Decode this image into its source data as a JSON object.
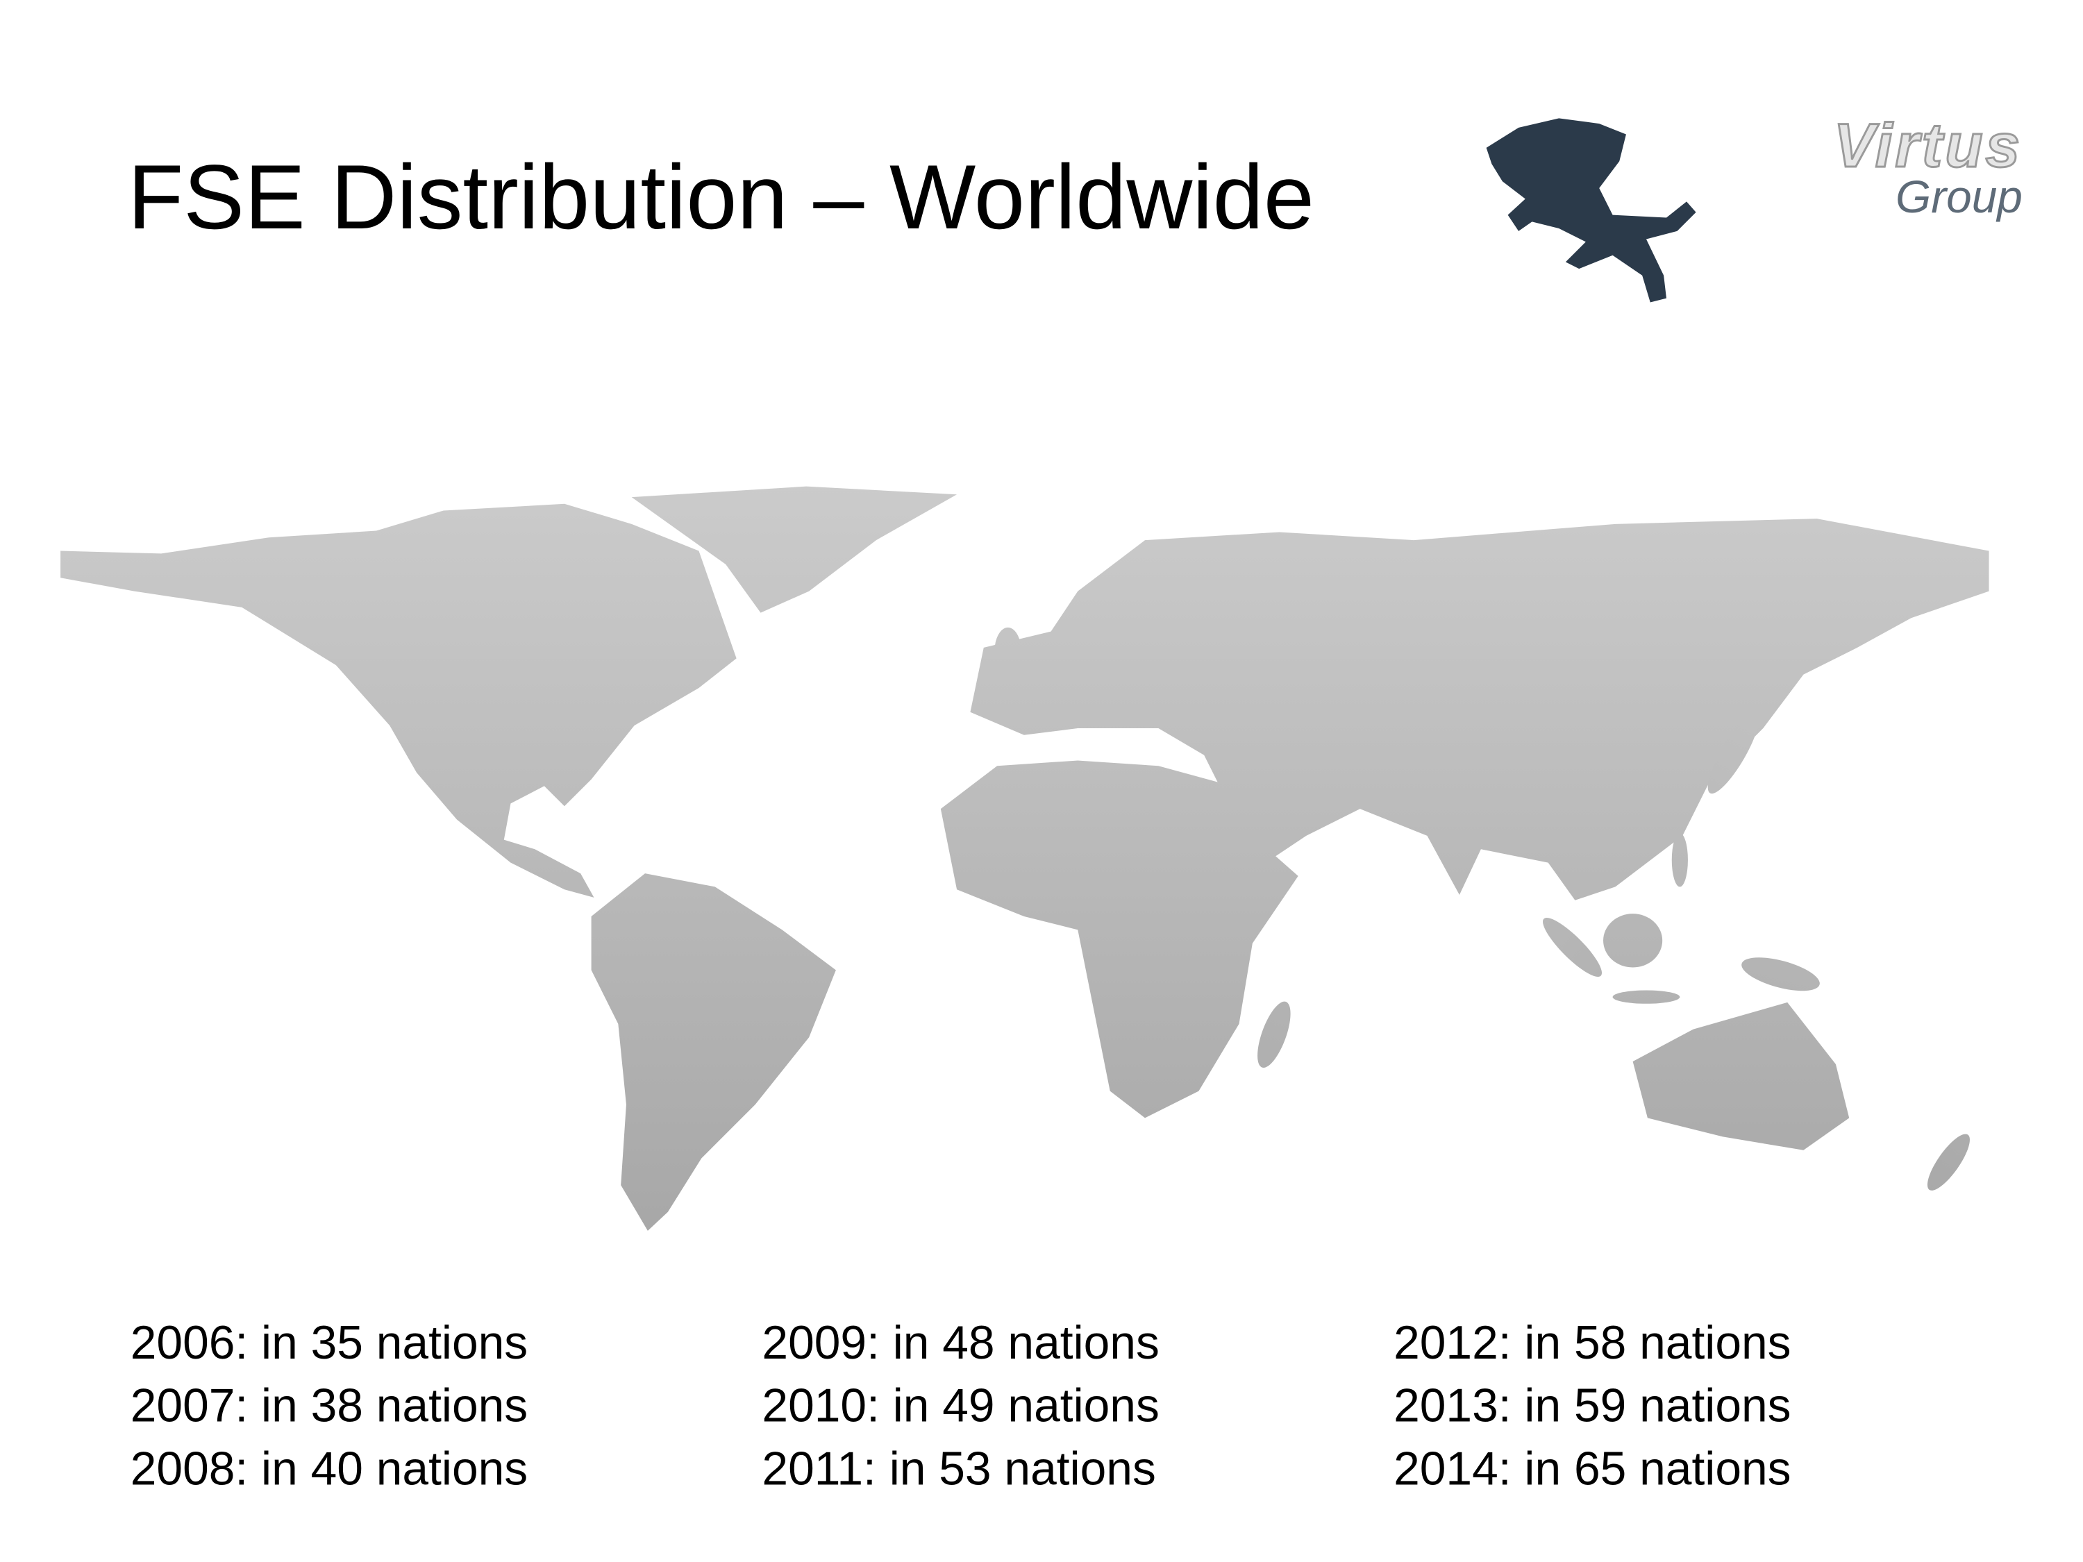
{
  "header": {
    "title": "FSE Distribution – Worldwide"
  },
  "logo": {
    "name": "Virtus",
    "tagline": "Group"
  },
  "stats": {
    "columns": [
      [
        "2006: in 35 nations",
        "2007: in 38 nations",
        "2008: in 40 nations"
      ],
      [
        "2009: in 48 nations",
        "2010: in 49 nations",
        "2011: in 53 nations"
      ],
      [
        "2012: in 58 nations",
        "2013: in 59 nations",
        "2014: in 65 nations"
      ]
    ]
  }
}
